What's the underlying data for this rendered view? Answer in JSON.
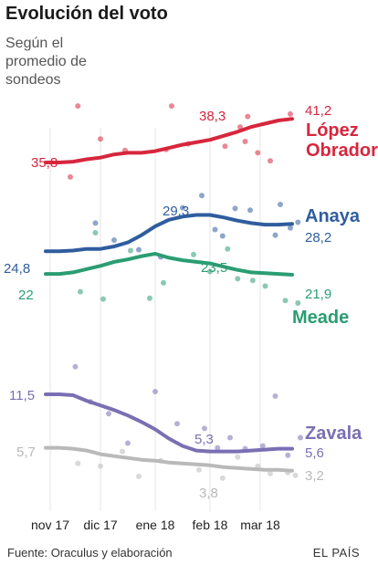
{
  "header": {
    "title": "Evolución del voto",
    "subtitle": "Según el promedio de sondeos"
  },
  "footer": {
    "source": "Fuente: Oraculus y elaboración",
    "brand": "EL PAÍS"
  },
  "chart_data": {
    "type": "line",
    "x_ticks": [
      "nov 17",
      "dic 17",
      "ene 18",
      "feb 18",
      "mar 18"
    ],
    "y_scale_note": "estimated",
    "series": [
      {
        "name": "López Obrador",
        "name_lines": [
          "López",
          "Obrador"
        ],
        "color": "#d7263d",
        "start_label": "35,8",
        "mid_label": "38,3",
        "end_label": "41,2",
        "values": [
          35.8,
          35.8,
          35.9,
          36.2,
          36.4,
          36.8,
          37.0,
          37.0,
          37.2,
          37.6,
          38.0,
          38.3,
          38.6,
          39.1,
          39.6,
          40.2,
          40.6,
          41.0,
          41.2
        ],
        "dots": [
          [
            0.55,
            42.8
          ],
          [
            1.0,
            38.7
          ],
          [
            1.45,
            37.3
          ],
          [
            2.3,
            42.8
          ],
          [
            2.6,
            38.1
          ],
          [
            3.3,
            37.8
          ],
          [
            3.6,
            40.2
          ],
          [
            3.75,
            41.5
          ],
          [
            3.95,
            37.0
          ],
          [
            4.2,
            36.0
          ],
          [
            4.6,
            41.8
          ],
          [
            0.4,
            34.0
          ],
          [
            3.7,
            38.4
          ],
          [
            2.2,
            37.4
          ]
        ]
      },
      {
        "name": "Anaya",
        "color": "#2f5d9e",
        "start_label": "24,8",
        "mid_label": "29,3",
        "end_label": "28,2",
        "values": [
          24.8,
          24.8,
          24.9,
          25.1,
          25.1,
          25.4,
          25.9,
          26.8,
          27.9,
          28.7,
          29.1,
          29.3,
          29.3,
          29.0,
          28.6,
          28.3,
          28.1,
          28.1,
          28.2
        ],
        "dots": [
          [
            0.9,
            28.3
          ],
          [
            1.25,
            26.2
          ],
          [
            1.7,
            25.0
          ],
          [
            2.1,
            24.1
          ],
          [
            2.5,
            30.2
          ],
          [
            2.85,
            31.7
          ],
          [
            3.1,
            27.5
          ],
          [
            3.25,
            26.7
          ],
          [
            3.5,
            30.1
          ],
          [
            3.8,
            29.9
          ],
          [
            4.3,
            26.8
          ],
          [
            4.6,
            27.7
          ],
          [
            4.75,
            28.4
          ],
          [
            4.4,
            30.6
          ]
        ]
      },
      {
        "name": "Meade",
        "color": "#2a9d72",
        "start_label": "22",
        "mid_label": "23,5",
        "end_label": "21,9",
        "values": [
          22.0,
          22.0,
          22.2,
          22.6,
          23.0,
          23.5,
          23.8,
          24.2,
          24.5,
          24.0,
          23.7,
          23.5,
          23.3,
          22.9,
          22.5,
          22.2,
          22.1,
          22.0,
          21.9
        ],
        "dots": [
          [
            0.6,
            19.8
          ],
          [
            0.9,
            27.1
          ],
          [
            1.05,
            18.9
          ],
          [
            1.55,
            24.9
          ],
          [
            1.9,
            19.0
          ],
          [
            2.15,
            20.9
          ],
          [
            2.7,
            24.4
          ],
          [
            3.0,
            22.3
          ],
          [
            3.35,
            25.1
          ],
          [
            3.55,
            21.4
          ],
          [
            3.85,
            21.2
          ],
          [
            4.1,
            20.5
          ],
          [
            4.5,
            18.7
          ],
          [
            4.75,
            18.4
          ]
        ]
      },
      {
        "name": "Zavala",
        "color": "#7b6fb3",
        "start_label": "11,5",
        "mid_label": "5,3",
        "end_label": "5,6",
        "values": [
          11.5,
          11.5,
          11.4,
          10.8,
          10.3,
          9.8,
          9.2,
          8.5,
          7.7,
          6.7,
          5.9,
          5.4,
          5.3,
          5.3,
          5.3,
          5.4,
          5.5,
          5.6,
          5.6
        ],
        "dots": [
          [
            0.5,
            14.5
          ],
          [
            0.8,
            10.7
          ],
          [
            1.15,
            9.4
          ],
          [
            1.5,
            6.2
          ],
          [
            2.0,
            11.8
          ],
          [
            2.4,
            8.3
          ],
          [
            2.9,
            7.8
          ],
          [
            3.15,
            5.7
          ],
          [
            3.4,
            6.8
          ],
          [
            3.7,
            5.6
          ],
          [
            4.05,
            5.9
          ],
          [
            4.3,
            11.3
          ],
          [
            4.55,
            4.9
          ],
          [
            4.8,
            6.8
          ]
        ]
      },
      {
        "name": "",
        "color": "#b9b9b9",
        "start_label": "5,7",
        "mid_label": "3,8",
        "end_label": "3,2",
        "values": [
          5.7,
          5.7,
          5.6,
          5.4,
          5.0,
          4.8,
          4.6,
          4.4,
          4.3,
          4.1,
          4.0,
          3.9,
          3.8,
          3.6,
          3.5,
          3.4,
          3.3,
          3.3,
          3.2
        ],
        "dots": [
          [
            0.55,
            4.0
          ],
          [
            1.0,
            3.7
          ],
          [
            1.4,
            5.3
          ],
          [
            1.7,
            2.6
          ],
          [
            2.1,
            4.3
          ],
          [
            2.8,
            3.3
          ],
          [
            3.25,
            2.4
          ],
          [
            3.55,
            4.7
          ],
          [
            3.95,
            3.7
          ],
          [
            4.2,
            2.9
          ],
          [
            4.55,
            3.0
          ],
          [
            4.7,
            2.7
          ]
        ]
      }
    ]
  }
}
